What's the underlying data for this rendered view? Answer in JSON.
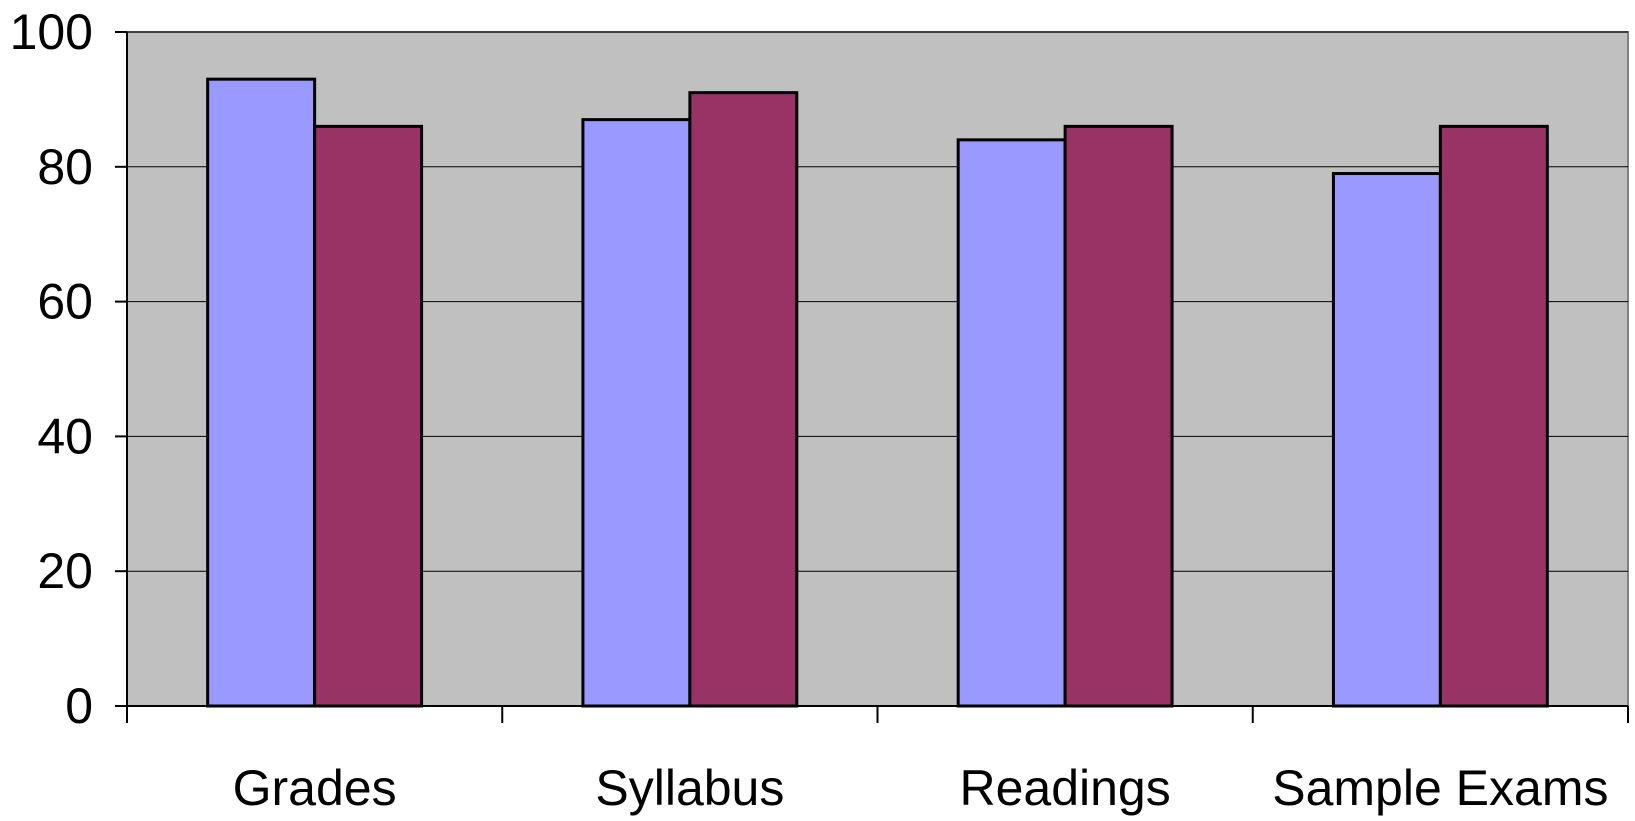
{
  "chart_data": {
    "type": "bar",
    "title": "",
    "xlabel": "",
    "ylabel": "",
    "ylim": [
      0,
      100
    ],
    "yticks": [
      0,
      20,
      40,
      60,
      80,
      100
    ],
    "grid": true,
    "legend": "none",
    "categories": [
      "Grades",
      "Syllabus",
      "Readings",
      "Sample Exams"
    ],
    "series": [
      {
        "color": "#9999ff",
        "values": [
          93,
          87,
          84,
          79
        ]
      },
      {
        "color": "#993366",
        "values": [
          86,
          91,
          86,
          86
        ]
      }
    ],
    "plot_background": "#c0c0c0",
    "bar_outline_color": "#000000"
  }
}
